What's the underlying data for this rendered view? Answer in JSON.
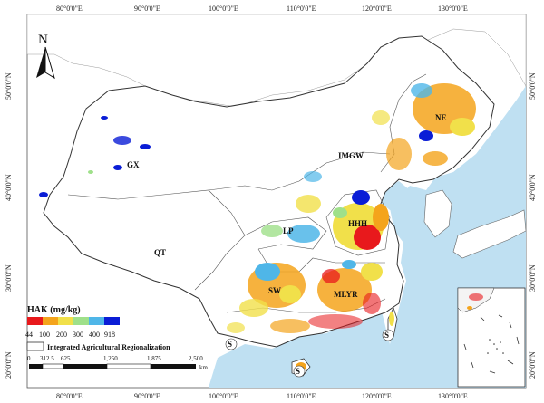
{
  "map": {
    "north_label": "N",
    "top_lon_labels": [
      "80°0'0\"E",
      "90°0'0\"E",
      "100°0'0\"E",
      "110°0'0\"E",
      "120°0'0\"E",
      "130°0'0\"E"
    ],
    "bottom_lon_labels": [
      "80°0'0\"E",
      "90°0'0\"E",
      "100°0'0\"E",
      "110°0'0\"E",
      "120°0'0\"E",
      "130°0'0\"E"
    ],
    "left_lat_labels": [
      "50°0'0\"N",
      "40°0'0\"N",
      "30°0'0\"N",
      "20°0'0\"N"
    ],
    "right_lat_labels": [
      "50°0'0\"N",
      "40°0'0\"N",
      "30°0'0\"N",
      "20°0'0\"N"
    ],
    "regions": {
      "NE": "NE",
      "IMGW": "IMGW",
      "GX": "GX",
      "HHH": "HHH",
      "LP": "LP",
      "QT": "QT",
      "SW": "SW",
      "MLYR": "MLYR",
      "S_left": "S",
      "S_center": "S",
      "S_right": "S"
    },
    "colors": {
      "sea": "#bfe0f2",
      "land": "#ffffff",
      "border": "#333333"
    }
  },
  "legend": {
    "title": "HAK (mg/kg)",
    "ticks": [
      "44",
      "100",
      "200",
      "300",
      "400",
      "918"
    ],
    "colors": [
      "#e8191c",
      "#f4a41c",
      "#f1e04a",
      "#9fe08a",
      "#4fb6e8",
      "#0a1dd6"
    ],
    "boundary_label": "Integrated Agricultural Regionalization"
  },
  "scale_bar": {
    "ticks": [
      "0",
      "312.5",
      "625",
      "1,250",
      "1,875",
      "2,500"
    ],
    "unit": "km"
  }
}
